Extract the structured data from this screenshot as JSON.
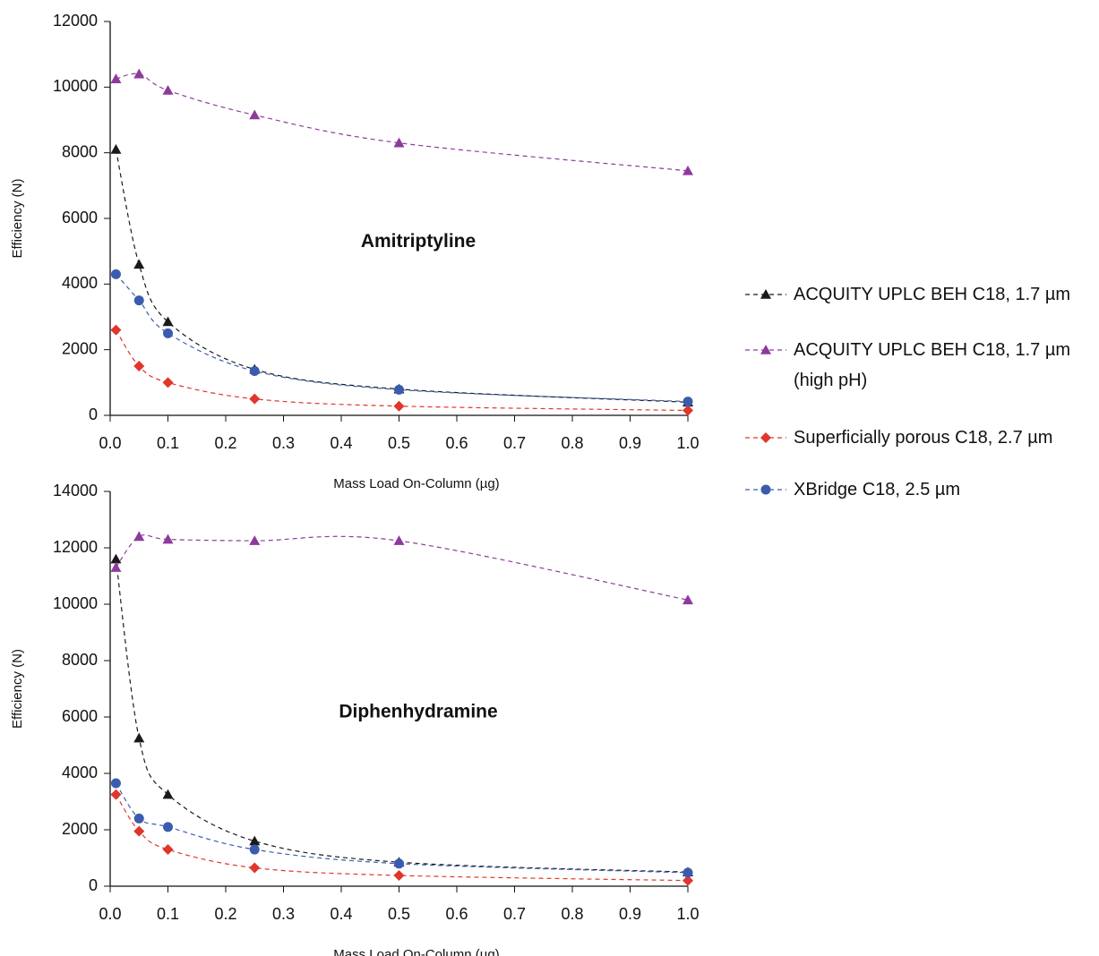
{
  "chart_data": [
    {
      "type": "line",
      "annotation": "Amitriptyline",
      "xlabel": "Mass Load On-Column (µg)",
      "ylabel": "Efficiency (N)",
      "x": [
        0.01,
        0.05,
        0.1,
        0.25,
        0.5,
        1.0
      ],
      "xlim": [
        0,
        1
      ],
      "xticks": [
        {
          "value": 0,
          "label": "0.0"
        },
        0.1,
        0.2,
        0.3,
        0.4,
        0.5,
        0.6,
        0.7,
        0.8,
        0.9,
        {
          "value": 1,
          "label": "1.0"
        }
      ],
      "ylim": [
        0,
        12000
      ],
      "yticks": [
        0,
        2000,
        4000,
        6000,
        8000,
        10000,
        12000
      ],
      "series": [
        {
          "name": "ACQUITY UPLC BEH C18, 1.7 µm",
          "color": "#1a1a1a",
          "marker": "triangle",
          "values": [
            8100,
            4600,
            2850,
            1400,
            800,
            400
          ]
        },
        {
          "name": "ACQUITY UPLC BEH C18, 1.7 µm (high pH)",
          "color": "#8e3a9d",
          "marker": "triangle",
          "values": [
            10250,
            10400,
            9900,
            9150,
            8300,
            7450
          ]
        },
        {
          "name": "Superficially porous C18, 2.7 µm",
          "color": "#e0362c",
          "marker": "diamond",
          "values": [
            2600,
            1500,
            1000,
            500,
            280,
            150
          ]
        },
        {
          "name": "XBridge C18, 2.5 µm",
          "color": "#3b5cae",
          "marker": "circle",
          "values": [
            4300,
            3500,
            2500,
            1350,
            780,
            420
          ]
        }
      ]
    },
    {
      "type": "line",
      "annotation": "Diphenhydramine",
      "xlabel": "Mass Load On-Column (µg)",
      "ylabel": "Efficiency (N)",
      "x": [
        0.01,
        0.05,
        0.1,
        0.25,
        0.5,
        1.0
      ],
      "xlim": [
        0,
        1
      ],
      "xticks": [
        {
          "value": 0,
          "label": "0.0"
        },
        0.1,
        0.2,
        0.3,
        0.4,
        0.5,
        0.6,
        0.7,
        0.8,
        0.9,
        {
          "value": 1,
          "label": "1.0"
        }
      ],
      "ylim": [
        0,
        14000
      ],
      "yticks": [
        0,
        2000,
        4000,
        6000,
        8000,
        10000,
        12000,
        14000
      ],
      "series": [
        {
          "color": "#1a1a1a",
          "marker": "triangle",
          "values": [
            11600,
            5250,
            3250,
            1600,
            850,
            500
          ]
        },
        {
          "color": "#8e3a9d",
          "marker": "triangle",
          "values": [
            11300,
            12400,
            12300,
            12250,
            12250,
            10150
          ]
        },
        {
          "color": "#e0362c",
          "marker": "diamond",
          "values": [
            3250,
            1950,
            1300,
            650,
            380,
            200
          ]
        },
        {
          "color": "#3b5cae",
          "marker": "circle",
          "values": [
            3650,
            2400,
            2100,
            1300,
            800,
            480
          ]
        }
      ]
    }
  ]
}
